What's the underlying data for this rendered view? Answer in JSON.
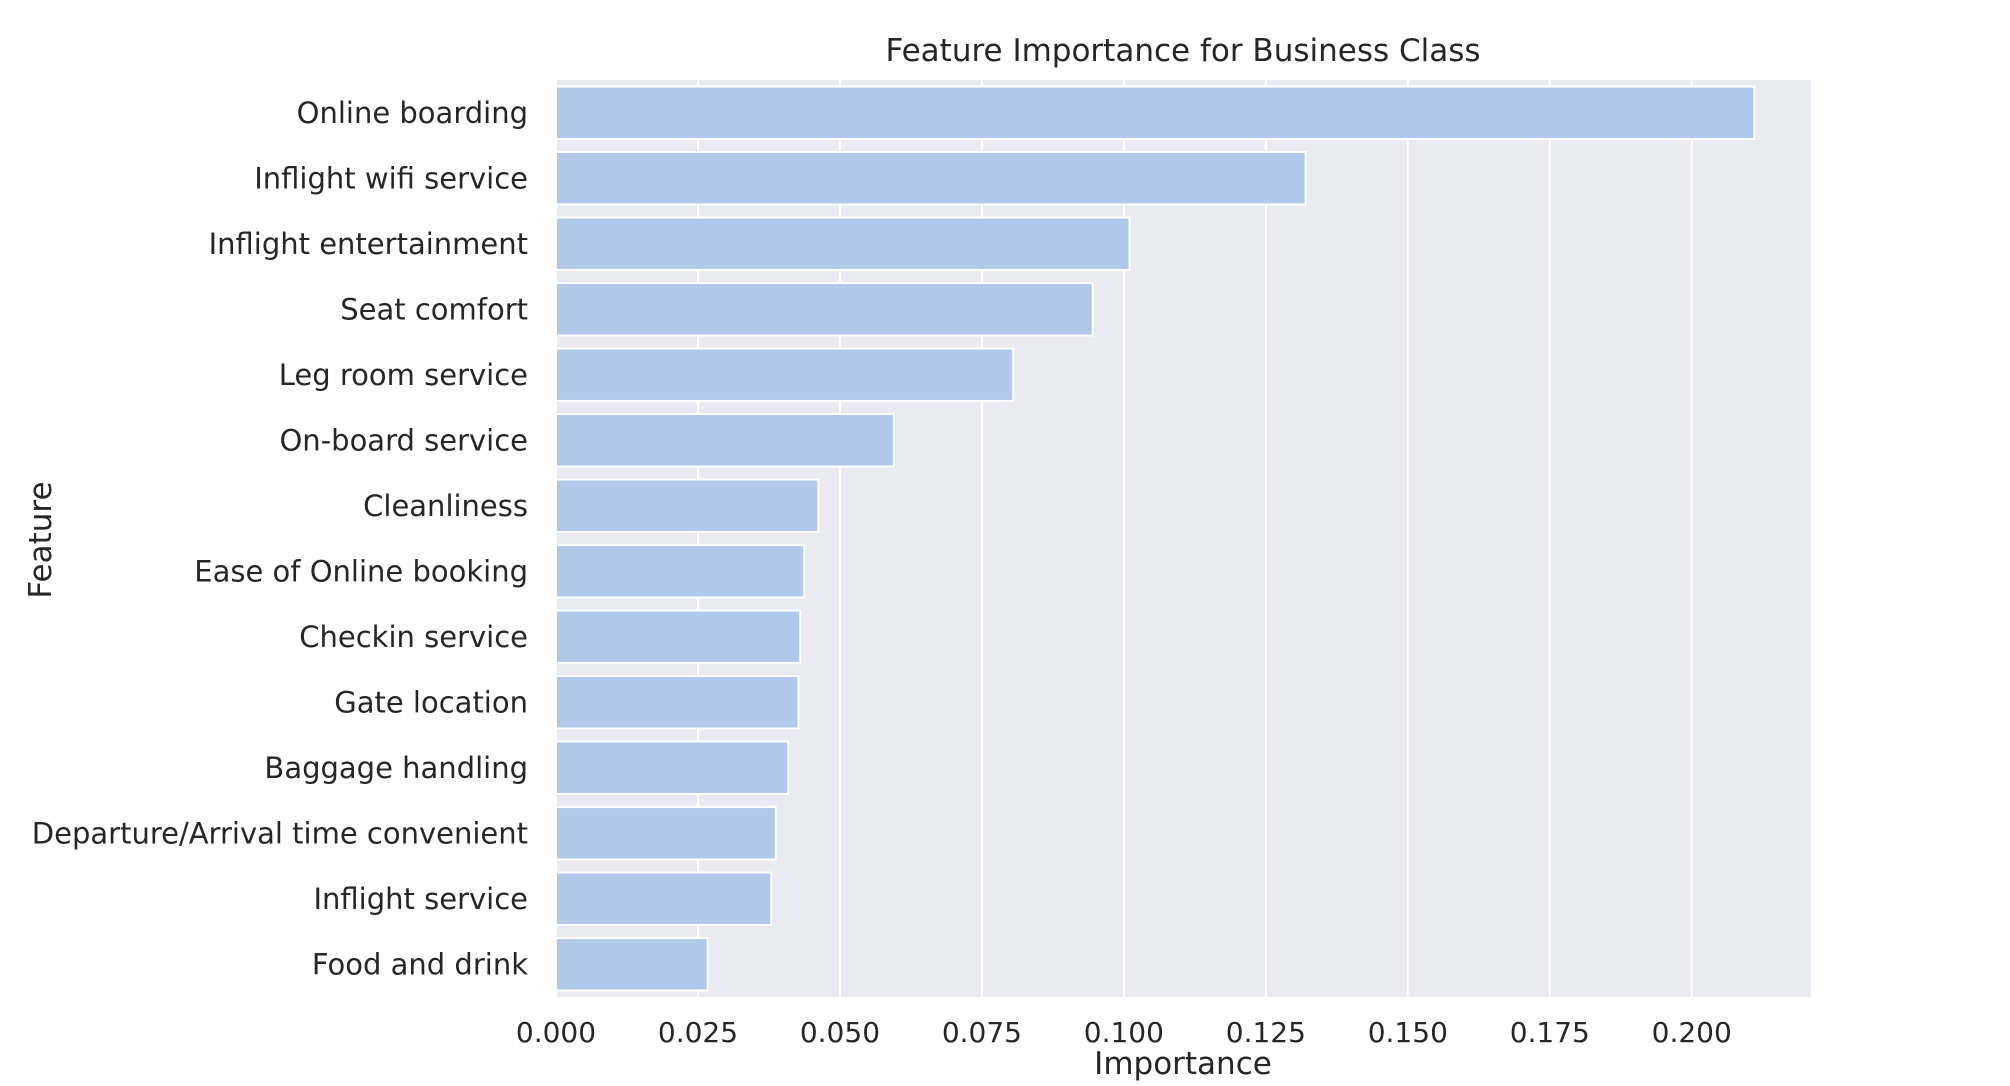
{
  "chart_data": {
    "type": "bar",
    "orientation": "horizontal",
    "title": "Feature Importance for Business Class",
    "xlabel": "Importance",
    "ylabel": "Feature",
    "xlim": [
      0,
      0.221
    ],
    "xticks": [
      "0.000",
      "0.025",
      "0.050",
      "0.075",
      "0.100",
      "0.125",
      "0.150",
      "0.175",
      "0.200"
    ],
    "grid": true,
    "bar_color": "#b0c8ea",
    "background_color": "#eaeaf2",
    "categories": [
      "Online boarding",
      "Inflight wifi service",
      "Inflight entertainment",
      "Seat comfort",
      "Leg room service",
      "On-board service",
      "Cleanliness",
      "Ease of Online booking",
      "Checkin service",
      "Gate location",
      "Baggage handling",
      "Departure/Arrival time convenient",
      "Inflight service",
      "Food and drink"
    ],
    "values": [
      0.211,
      0.132,
      0.101,
      0.0945,
      0.0805,
      0.0595,
      0.0462,
      0.0437,
      0.043,
      0.0427,
      0.0409,
      0.0387,
      0.0379,
      0.0267
    ]
  }
}
